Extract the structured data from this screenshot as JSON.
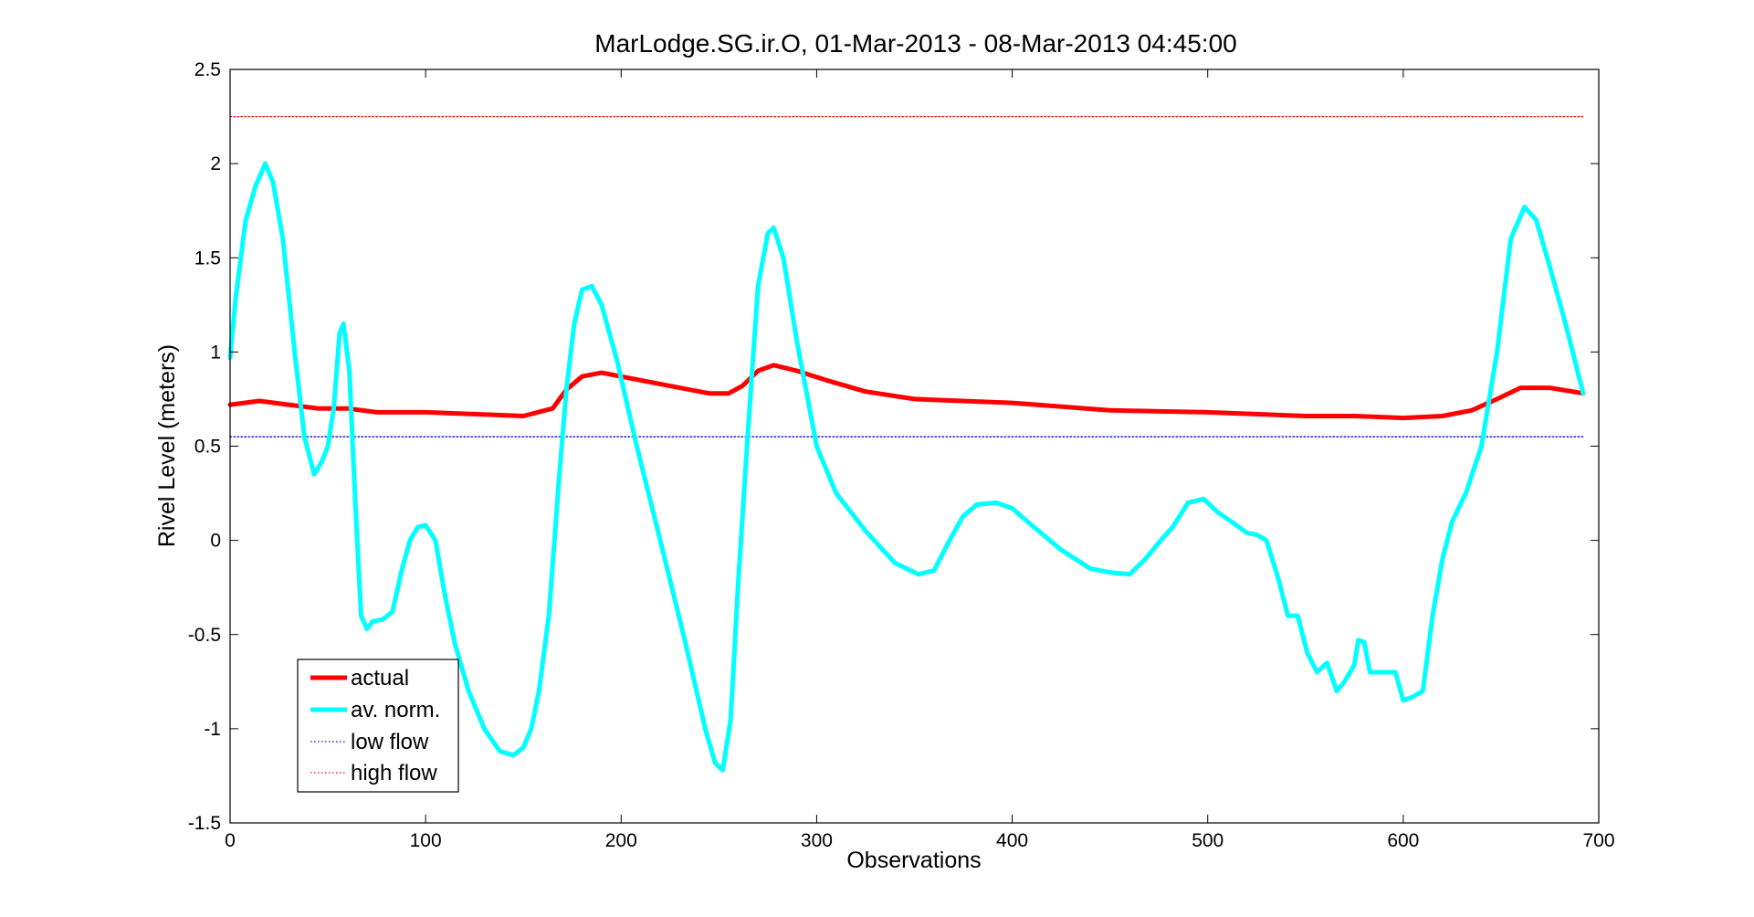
{
  "chart_data": {
    "type": "line",
    "title": "MarLodge.SG.ir.O, 01-Mar-2013 - 08-Mar-2013 04:45:00",
    "xlabel": "Observations",
    "ylabel": "Rivel Level (meters)",
    "xlim": [
      0,
      700
    ],
    "ylim": [
      -1.5,
      2.5
    ],
    "xticks": [
      0,
      100,
      200,
      300,
      400,
      500,
      600,
      700
    ],
    "yticks": [
      -1.5,
      -1,
      -0.5,
      0,
      0.5,
      1,
      1.5,
      2,
      2.5
    ],
    "xtick_labels": [
      "0",
      "100",
      "200",
      "300",
      "400",
      "500",
      "600",
      "700"
    ],
    "ytick_labels": [
      "-1.5",
      "-1",
      "-0.5",
      "0",
      "0.5",
      "1",
      "1.5",
      "2",
      "2.5"
    ],
    "grid": false,
    "legend_position": "bottom-left",
    "series": [
      {
        "name": "actual",
        "color": "#ff0000",
        "style": "solid",
        "x": [
          0,
          15,
          30,
          45,
          60,
          75,
          100,
          125,
          150,
          165,
          172,
          180,
          190,
          200,
          215,
          230,
          245,
          255,
          262,
          270,
          278,
          290,
          305,
          325,
          350,
          400,
          450,
          500,
          550,
          575,
          600,
          620,
          635,
          648,
          660,
          675,
          692
        ],
        "values": [
          0.72,
          0.74,
          0.72,
          0.7,
          0.7,
          0.68,
          0.68,
          0.67,
          0.66,
          0.7,
          0.8,
          0.87,
          0.89,
          0.87,
          0.84,
          0.81,
          0.78,
          0.78,
          0.82,
          0.9,
          0.93,
          0.9,
          0.85,
          0.79,
          0.75,
          0.73,
          0.69,
          0.68,
          0.66,
          0.66,
          0.65,
          0.66,
          0.69,
          0.75,
          0.81,
          0.81,
          0.78
        ]
      },
      {
        "name": "av. norm.",
        "color": "#00ffff",
        "style": "solid",
        "x": [
          0,
          3,
          8,
          13,
          18,
          22,
          27,
          33,
          38,
          43,
          47,
          50,
          53,
          56,
          58,
          61,
          64,
          67,
          70,
          73,
          78,
          83,
          88,
          92,
          96,
          100,
          105,
          110,
          115,
          122,
          130,
          138,
          145,
          150,
          154,
          158,
          163,
          168,
          172,
          176,
          180,
          185,
          190,
          198,
          208,
          220,
          233,
          243,
          248,
          252,
          256,
          260,
          265,
          270,
          275,
          278,
          283,
          290,
          300,
          310,
          325,
          340,
          352,
          360,
          368,
          375,
          382,
          392,
          400,
          410,
          425,
          440,
          450,
          460,
          468,
          476,
          482,
          490,
          498,
          505,
          512,
          520,
          525,
          530,
          536,
          541,
          546,
          551,
          556,
          561,
          566,
          570,
          575,
          577,
          580,
          583,
          587,
          591,
          596,
          600,
          605,
          610,
          615,
          620,
          625,
          632,
          640,
          648,
          655,
          662,
          668,
          675,
          683,
          692
        ],
        "values": [
          0.97,
          1.3,
          1.7,
          1.88,
          2.0,
          1.9,
          1.6,
          1.0,
          0.55,
          0.35,
          0.42,
          0.5,
          0.7,
          1.1,
          1.15,
          0.9,
          0.2,
          -0.4,
          -0.47,
          -0.43,
          -0.42,
          -0.38,
          -0.15,
          0.0,
          0.07,
          0.08,
          0.0,
          -0.3,
          -0.55,
          -0.8,
          -1.0,
          -1.12,
          -1.14,
          -1.1,
          -1.0,
          -0.8,
          -0.4,
          0.3,
          0.8,
          1.15,
          1.33,
          1.35,
          1.25,
          0.95,
          0.5,
          0.0,
          -0.55,
          -1.0,
          -1.18,
          -1.22,
          -0.95,
          -0.2,
          0.6,
          1.35,
          1.63,
          1.66,
          1.5,
          1.05,
          0.5,
          0.25,
          0.05,
          -0.12,
          -0.18,
          -0.16,
          0.0,
          0.13,
          0.19,
          0.2,
          0.17,
          0.08,
          -0.05,
          -0.15,
          -0.17,
          -0.18,
          -0.1,
          0.0,
          0.07,
          0.2,
          0.22,
          0.15,
          0.1,
          0.04,
          0.03,
          0.0,
          -0.2,
          -0.4,
          -0.4,
          -0.6,
          -0.7,
          -0.65,
          -0.8,
          -0.75,
          -0.66,
          -0.53,
          -0.54,
          -0.7,
          -0.7,
          -0.7,
          -0.7,
          -0.85,
          -0.83,
          -0.8,
          -0.4,
          -0.1,
          0.1,
          0.25,
          0.5,
          1.0,
          1.6,
          1.77,
          1.7,
          1.45,
          1.15,
          0.78
        ]
      },
      {
        "name": "low flow",
        "color": "#0000ff",
        "style": "dotted",
        "x": [
          0,
          692
        ],
        "values": [
          0.55,
          0.55
        ]
      },
      {
        "name": "high flow",
        "color": "#ff0000",
        "style": "dotted",
        "x": [
          0,
          692
        ],
        "values": [
          2.25,
          2.25
        ]
      }
    ]
  }
}
